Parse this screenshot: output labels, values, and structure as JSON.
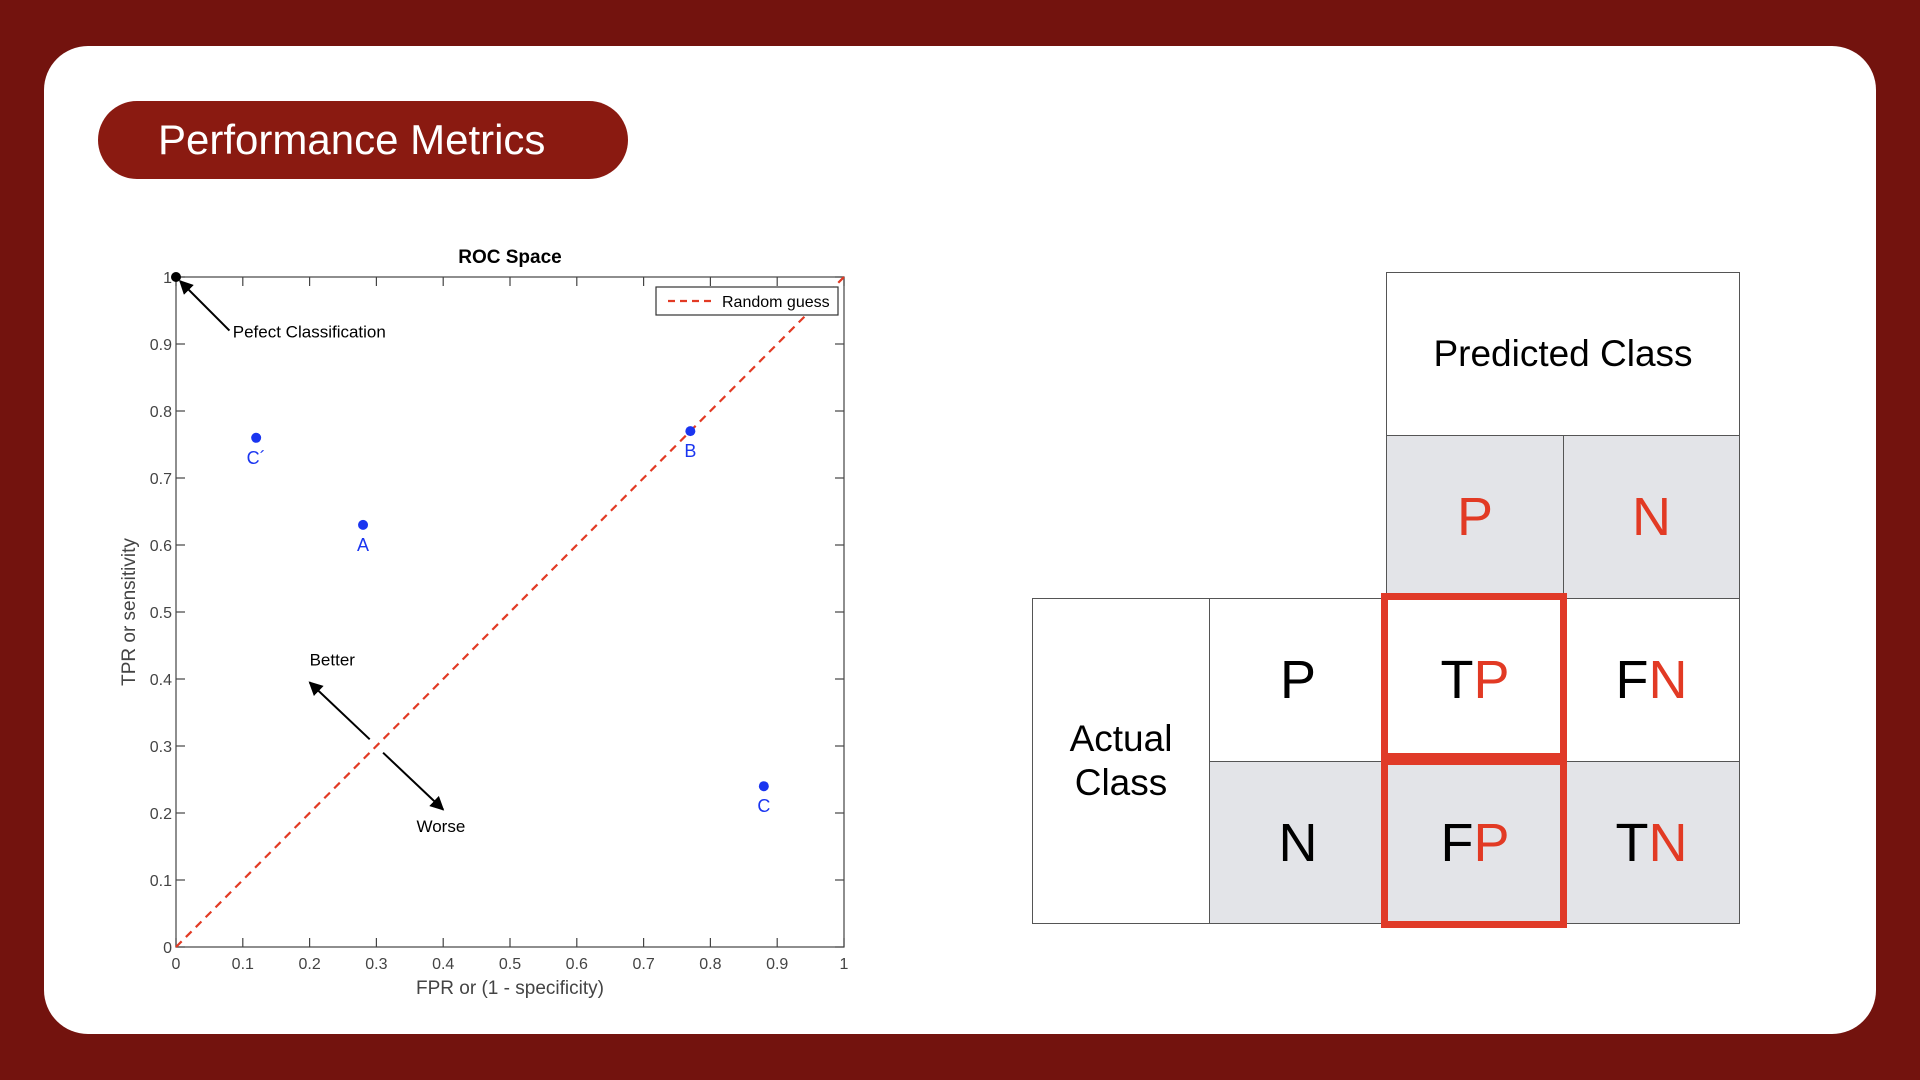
{
  "slide": {
    "title": "Performance Metrics"
  },
  "chart_data": {
    "type": "scatter",
    "title": "ROC Space",
    "xlabel": "FPR or (1 - specificity)",
    "ylabel": "TPR or sensitivity",
    "xlim": [
      0,
      1
    ],
    "ylim": [
      0,
      1
    ],
    "xticks": [
      "0",
      "0.1",
      "0.2",
      "0.3",
      "0.4",
      "0.5",
      "0.6",
      "0.7",
      "0.8",
      "0.9",
      "1"
    ],
    "yticks": [
      "0",
      "0.1",
      "0.2",
      "0.3",
      "0.4",
      "0.5",
      "0.6",
      "0.7",
      "0.8",
      "0.9",
      "1"
    ],
    "grid": false,
    "legend": {
      "placement": "top-right",
      "entries": [
        "Random guess"
      ]
    },
    "random_guess": {
      "x": [
        0,
        1
      ],
      "y": [
        0,
        1
      ],
      "color": "#e23a24",
      "style": "dashed"
    },
    "points": [
      {
        "label": "C´",
        "x": 0.12,
        "y": 0.76
      },
      {
        "label": "A",
        "x": 0.28,
        "y": 0.63
      },
      {
        "label": "B",
        "x": 0.77,
        "y": 0.77
      },
      {
        "label": "C",
        "x": 0.88,
        "y": 0.24
      }
    ],
    "point_color": "#1a35f0",
    "annotations": {
      "perfect": {
        "text": "Pefect Classification",
        "point": [
          0,
          1
        ]
      },
      "better": "Better",
      "worse": "Worse"
    }
  },
  "confusion_matrix": {
    "predicted_header": "Predicted Class",
    "actual_header": "Actual Class",
    "predicted_labels": [
      "P",
      "N"
    ],
    "actual_labels": [
      "P",
      "N"
    ],
    "cells": [
      [
        {
          "first": "T",
          "second": "P"
        },
        {
          "first": "F",
          "second": "N"
        }
      ],
      [
        {
          "first": "F",
          "second": "P"
        },
        {
          "first": "T",
          "second": "N"
        }
      ]
    ],
    "highlight_color": "#e03a28",
    "accent_color": "#e23a24"
  }
}
